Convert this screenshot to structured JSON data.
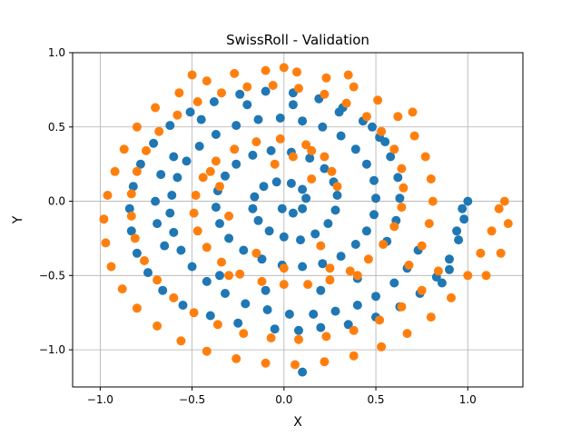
{
  "chart_data": {
    "type": "scatter",
    "title": "SwissRoll - Validation",
    "xlabel": "X",
    "ylabel": "Y",
    "xlim": [
      -1.15,
      1.3
    ],
    "ylim": [
      -1.25,
      1.0
    ],
    "xticks": [
      -1.0,
      -0.5,
      0.0,
      0.5,
      1.0
    ],
    "xtick_labels": [
      "−1.0",
      "−0.5",
      "0.0",
      "0.5",
      "1.0"
    ],
    "yticks": [
      -1.0,
      -0.5,
      0.0,
      0.5,
      1.0
    ],
    "ytick_labels": [
      "−1.0",
      "−0.5",
      "0.0",
      "0.5",
      "1.0"
    ],
    "grid": true,
    "legend": "none",
    "series": [
      {
        "color": "#1f77b4",
        "points": [
          [
            -0.01,
            -0.05
          ],
          [
            0.05,
            -0.08
          ],
          [
            0.1,
            -0.05
          ],
          [
            0.12,
            0.02
          ],
          [
            0.1,
            0.08
          ],
          [
            0.04,
            0.12
          ],
          [
            -0.04,
            0.13
          ],
          [
            -0.11,
            0.1
          ],
          [
            -0.16,
            0.03
          ],
          [
            -0.17,
            -0.05
          ],
          [
            -0.14,
            -0.13
          ],
          [
            -0.08,
            -0.2
          ],
          [
            0.0,
            -0.24
          ],
          [
            0.09,
            -0.26
          ],
          [
            0.17,
            -0.22
          ],
          [
            0.24,
            -0.15
          ],
          [
            0.28,
            -0.06
          ],
          [
            0.29,
            0.04
          ],
          [
            0.27,
            0.13
          ],
          [
            0.22,
            0.22
          ],
          [
            0.14,
            0.29
          ],
          [
            0.04,
            0.33
          ],
          [
            -0.07,
            0.34
          ],
          [
            -0.17,
            0.31
          ],
          [
            -0.26,
            0.25
          ],
          [
            -0.32,
            0.17
          ],
          [
            -0.36,
            0.07
          ],
          [
            -0.37,
            -0.04
          ],
          [
            -0.35,
            -0.15
          ],
          [
            -0.3,
            -0.25
          ],
          [
            -0.22,
            -0.33
          ],
          [
            -0.12,
            -0.39
          ],
          [
            -0.01,
            -0.43
          ],
          [
            0.1,
            -0.44
          ],
          [
            0.21,
            -0.42
          ],
          [
            0.31,
            -0.37
          ],
          [
            0.39,
            -0.29
          ],
          [
            0.45,
            -0.2
          ],
          [
            0.49,
            -0.09
          ],
          [
            0.5,
            0.02
          ],
          [
            0.49,
            0.14
          ],
          [
            0.45,
            0.25
          ],
          [
            0.39,
            0.35
          ],
          [
            0.31,
            0.44
          ],
          [
            0.21,
            0.5
          ],
          [
            0.1,
            0.54
          ],
          [
            -0.02,
            0.56
          ],
          [
            -0.14,
            0.55
          ],
          [
            -0.26,
            0.51
          ],
          [
            -0.37,
            0.45
          ],
          [
            -0.46,
            0.37
          ],
          [
            -0.53,
            0.27
          ],
          [
            -0.58,
            0.16
          ],
          [
            -0.61,
            0.04
          ],
          [
            -0.62,
            -0.08
          ],
          [
            -0.6,
            -0.21
          ],
          [
            -0.56,
            -0.33
          ],
          [
            -0.5,
            -0.44
          ],
          [
            -0.42,
            -0.54
          ],
          [
            -0.32,
            -0.62
          ],
          [
            -0.21,
            -0.69
          ],
          [
            -0.09,
            -0.73
          ],
          [
            0.03,
            -0.76
          ],
          [
            0.16,
            -0.76
          ],
          [
            0.28,
            -0.74
          ],
          [
            0.4,
            -0.7
          ],
          [
            0.5,
            -0.64
          ],
          [
            0.6,
            -0.55
          ],
          [
            0.67,
            -0.45
          ],
          [
            0.73,
            -0.33
          ],
          [
            0.2,
            -0.85
          ],
          [
            0.35,
            -0.83
          ],
          [
            0.5,
            -0.78
          ],
          [
            0.63,
            -0.71
          ],
          [
            0.74,
            -0.62
          ],
          [
            0.83,
            -0.51
          ],
          [
            0.9,
            -0.39
          ],
          [
            0.95,
            -0.26
          ],
          [
            0.98,
            -0.12
          ],
          [
            1.0,
            0.0
          ],
          [
            -0.25,
            -0.82
          ],
          [
            -0.4,
            -0.77
          ],
          [
            -0.55,
            -0.7
          ],
          [
            -0.66,
            -0.6
          ],
          [
            -0.74,
            -0.48
          ],
          [
            -0.8,
            -0.35
          ],
          [
            -0.83,
            -0.2
          ],
          [
            -0.84,
            -0.05
          ],
          [
            -0.82,
            0.1
          ],
          [
            -0.78,
            0.25
          ],
          [
            -0.71,
            0.39
          ],
          [
            -0.62,
            0.51
          ],
          [
            -0.51,
            0.6
          ],
          [
            -0.38,
            0.67
          ],
          [
            -0.24,
            0.72
          ],
          [
            -0.1,
            0.74
          ],
          [
            0.05,
            0.73
          ],
          [
            0.19,
            0.69
          ],
          [
            0.32,
            0.63
          ],
          [
            0.43,
            0.54
          ],
          [
            0.52,
            0.43
          ],
          [
            0.58,
            0.3
          ],
          [
            0.62,
            0.16
          ],
          [
            0.63,
            0.02
          ],
          [
            0.61,
            -0.13
          ],
          [
            0.56,
            -0.27
          ],
          [
            -0.05,
            -0.86
          ],
          [
            0.08,
            -0.87
          ],
          [
            0.9,
            -0.46
          ],
          [
            0.86,
            -0.55
          ],
          [
            0.94,
            -0.2
          ],
          [
            0.97,
            -0.05
          ],
          [
            -0.6,
            0.3
          ],
          [
            -0.67,
            0.18
          ],
          [
            -0.7,
            0.0
          ],
          [
            -0.69,
            -0.15
          ],
          [
            -0.65,
            -0.3
          ],
          [
            0.55,
            0.4
          ],
          [
            0.48,
            0.5
          ],
          [
            0.05,
            0.65
          ],
          [
            -0.2,
            0.65
          ],
          [
            0.3,
            0.6
          ],
          [
            -0.45,
            0.55
          ],
          [
            0.2,
            -0.6
          ],
          [
            0.4,
            -0.52
          ],
          [
            -0.1,
            -0.6
          ],
          [
            -0.35,
            -0.5
          ],
          [
            0.1,
            -1.15
          ]
        ]
      },
      {
        "color": "#ff7f0e",
        "points": [
          [
            0.05,
            0.3
          ],
          [
            0.15,
            0.34
          ],
          [
            0.22,
            0.3
          ],
          [
            0.26,
            0.2
          ],
          [
            0.29,
            0.1
          ],
          [
            0.12,
            0.38
          ],
          [
            -0.02,
            0.42
          ],
          [
            -0.15,
            0.4
          ],
          [
            -0.27,
            0.35
          ],
          [
            -0.37,
            0.27
          ],
          [
            -0.44,
            0.16
          ],
          [
            -0.48,
            0.04
          ],
          [
            -0.49,
            -0.08
          ],
          [
            -0.47,
            -0.2
          ],
          [
            -0.42,
            -0.31
          ],
          [
            -0.34,
            -0.41
          ],
          [
            -0.24,
            -0.49
          ],
          [
            -0.12,
            -0.54
          ],
          [
            0.0,
            -0.56
          ],
          [
            0.13,
            -0.56
          ],
          [
            0.25,
            -0.53
          ],
          [
            0.36,
            -0.47
          ],
          [
            0.46,
            -0.39
          ],
          [
            0.54,
            -0.29
          ],
          [
            0.6,
            -0.17
          ],
          [
            0.64,
            -0.04
          ],
          [
            0.65,
            0.09
          ],
          [
            0.64,
            0.22
          ],
          [
            0.6,
            0.35
          ],
          [
            0.53,
            0.47
          ],
          [
            0.45,
            0.57
          ],
          [
            0.34,
            0.66
          ],
          [
            0.22,
            0.72
          ],
          [
            0.08,
            0.76
          ],
          [
            -0.06,
            0.78
          ],
          [
            -0.2,
            0.77
          ],
          [
            -0.34,
            0.73
          ],
          [
            -0.47,
            0.67
          ],
          [
            -0.58,
            0.58
          ],
          [
            -0.68,
            0.47
          ],
          [
            -0.75,
            0.34
          ],
          [
            -0.8,
            0.2
          ],
          [
            -0.83,
            0.05
          ],
          [
            -0.83,
            -0.1
          ],
          [
            -0.81,
            -0.25
          ],
          [
            -0.76,
            -0.4
          ],
          [
            -0.69,
            -0.53
          ],
          [
            -0.6,
            -0.65
          ],
          [
            -0.49,
            -0.75
          ],
          [
            -0.36,
            -0.83
          ],
          [
            -0.22,
            -0.89
          ],
          [
            -0.07,
            -0.92
          ],
          [
            0.08,
            -0.93
          ],
          [
            0.23,
            -0.91
          ],
          [
            0.38,
            -0.87
          ],
          [
            0.52,
            -0.8
          ],
          [
            0.64,
            -0.71
          ],
          [
            0.75,
            -0.6
          ],
          [
            0.84,
            -0.47
          ],
          [
            -0.92,
            0.2
          ],
          [
            -0.96,
            0.04
          ],
          [
            -0.98,
            -0.12
          ],
          [
            -0.97,
            -0.28
          ],
          [
            -0.94,
            -0.44
          ],
          [
            -0.88,
            -0.59
          ],
          [
            -0.8,
            -0.72
          ],
          [
            -0.69,
            -0.84
          ],
          [
            -0.56,
            -0.94
          ],
          [
            -0.42,
            -1.01
          ],
          [
            -0.26,
            -1.06
          ],
          [
            -0.1,
            -1.09
          ],
          [
            0.06,
            -1.1
          ],
          [
            0.22,
            -1.08
          ],
          [
            0.38,
            -1.04
          ],
          [
            0.53,
            -0.98
          ],
          [
            0.67,
            -0.89
          ],
          [
            0.8,
            -0.78
          ],
          [
            0.91,
            -0.65
          ],
          [
            1.0,
            -0.5
          ],
          [
            1.07,
            -0.35
          ],
          [
            1.13,
            -0.2
          ],
          [
            1.17,
            -0.05
          ],
          [
            1.2,
            0.0
          ],
          [
            1.22,
            -0.15
          ],
          [
            1.18,
            -0.35
          ],
          [
            1.1,
            -0.5
          ],
          [
            -0.87,
            0.35
          ],
          [
            -0.8,
            0.5
          ],
          [
            -0.7,
            0.63
          ],
          [
            -0.57,
            0.73
          ],
          [
            -0.42,
            0.81
          ],
          [
            -0.27,
            0.86
          ],
          [
            -0.1,
            0.88
          ],
          [
            0.07,
            0.87
          ],
          [
            0.23,
            0.83
          ],
          [
            0.38,
            0.77
          ],
          [
            0.51,
            0.68
          ],
          [
            0.62,
            0.57
          ],
          [
            0.71,
            0.44
          ],
          [
            0.77,
            0.3
          ],
          [
            0.8,
            0.15
          ],
          [
            0.81,
            0.0
          ],
          [
            0.79,
            -0.15
          ],
          [
            0.75,
            -0.3
          ],
          [
            0.68,
            -0.43
          ],
          [
            -0.35,
            0.1
          ],
          [
            -0.3,
            -0.1
          ],
          [
            -0.15,
            -0.35
          ],
          [
            0.2,
            -0.3
          ],
          [
            0.25,
            -0.45
          ],
          [
            -0.4,
            0.2
          ],
          [
            0.0,
            -0.45
          ],
          [
            -0.3,
            -0.5
          ],
          [
            0.4,
            -0.5
          ],
          [
            0.15,
            0.15
          ],
          [
            -0.05,
            0.25
          ],
          [
            0.0,
            0.9
          ],
          [
            0.35,
            0.85
          ],
          [
            -0.5,
            0.85
          ],
          [
            0.7,
            0.6
          ]
        ]
      }
    ]
  }
}
